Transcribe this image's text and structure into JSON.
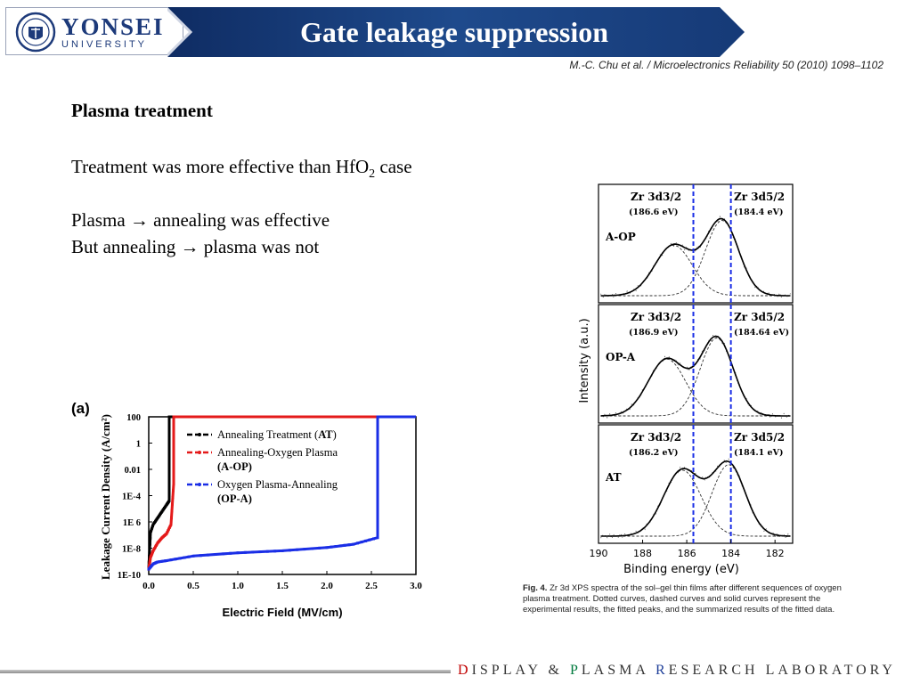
{
  "logo": {
    "name": "YONSEI",
    "subtitle": "UNIVERSITY"
  },
  "title": "Gate leakage suppression",
  "citation": "M.-C. Chu et al. / Microelectronics Reliability 50 (2010) 1098–1102",
  "body": {
    "heading": "Plasma treatment",
    "line1_pre": "Treatment was more effective than HfO",
    "line1_sub": "2",
    "line1_post": " case",
    "line2": "Plasma → annealing was effective",
    "line3": "But annealing → plasma was not"
  },
  "chart_data": [
    {
      "type": "line",
      "panel_label": "(a)",
      "xlabel": "Electric Field (MV/cm)",
      "ylabel": "Leakage Current Density (A/cm²)",
      "x_ticks": [
        "0.0",
        "0.5",
        "1.0",
        "1.5",
        "2.0",
        "2.5",
        "3.0"
      ],
      "y_ticks": [
        "100",
        "1",
        "0.01",
        "1E-4",
        "1E 6",
        "1E-8",
        "1E-10"
      ],
      "xlim": [
        0,
        3.0
      ],
      "ylim_log10": [
        -10,
        2
      ],
      "legend": [
        {
          "text_parts": [
            "Annealing Treatment (",
            "AT",
            ")"
          ],
          "color": "#000000"
        },
        {
          "text_parts": [
            "Annealing-Oxygen Plasma"
          ],
          "text2": "(A-OP)",
          "color": "#e41a1a"
        },
        {
          "text_parts": [
            "Oxygen Plasma-Annealing"
          ],
          "text2": "(OP-A)",
          "color": "#1a2ee6"
        }
      ],
      "series": [
        {
          "name": "AT",
          "color": "#000000",
          "x": [
            0.0,
            0.02,
            0.05,
            0.1,
            0.15,
            0.2,
            0.23,
            0.23,
            0.5,
            1.0,
            1.5,
            2.0,
            2.5,
            3.0
          ],
          "log10y": [
            -9.5,
            -6.8,
            -6.2,
            -5.7,
            -5.2,
            -4.7,
            -4.4,
            2.0,
            2.0,
            2.0,
            2.0,
            2.0,
            2.0,
            2.0
          ]
        },
        {
          "name": "A-OP",
          "color": "#e41a1a",
          "x": [
            0.0,
            0.02,
            0.05,
            0.1,
            0.15,
            0.2,
            0.25,
            0.28,
            0.28,
            0.5,
            1.0,
            1.5,
            2.0,
            2.5,
            3.0
          ],
          "log10y": [
            -9.6,
            -8.7,
            -8.2,
            -7.6,
            -7.2,
            -6.9,
            -6.2,
            -3.1,
            2.0,
            2.0,
            2.0,
            2.0,
            2.0,
            2.0,
            2.0
          ]
        },
        {
          "name": "OP-A",
          "color": "#1a2ee6",
          "x": [
            0.0,
            0.05,
            0.1,
            0.2,
            0.5,
            1.0,
            1.5,
            2.0,
            2.3,
            2.57,
            2.57,
            2.7,
            3.0
          ],
          "log10y": [
            -9.6,
            -9.2,
            -9.05,
            -8.95,
            -8.6,
            -8.35,
            -8.2,
            -7.95,
            -7.7,
            -7.2,
            2.0,
            2.0,
            2.0
          ]
        }
      ]
    },
    {
      "type": "line",
      "xlabel": "Binding energy (eV)",
      "ylabel": "Intensity (a.u.)",
      "x_ticks": [
        "190",
        "188",
        "186",
        "184",
        "182"
      ],
      "xlim": [
        190,
        181.2
      ],
      "reference_lines_ev": [
        185.7,
        184.0
      ],
      "panels": [
        {
          "sample": "A-OP",
          "peak1_label": "Zr 3d3/2",
          "peak1_ev": "(186.6 eV)",
          "peak2_label": "Zr 3d5/2",
          "peak2_ev": "(184.4 eV)",
          "peak1_center": 186.6,
          "peak1_height": 0.55,
          "peak2_center": 184.4,
          "peak2_height": 0.82
        },
        {
          "sample": "OP-A",
          "peak1_label": "Zr 3d3/2",
          "peak1_ev": "(186.9 eV)",
          "peak2_label": "Zr 3d5/2",
          "peak2_ev": "(184.64 eV)",
          "peak1_center": 186.9,
          "peak1_height": 0.62,
          "peak2_center": 184.64,
          "peak2_height": 0.85
        },
        {
          "sample": "AT",
          "peak1_label": "Zr 3d3/2",
          "peak1_ev": "(186.2 eV)",
          "peak2_label": "Zr 3d5/2",
          "peak2_ev": "(184.1 eV)",
          "peak1_center": 186.2,
          "peak1_height": 0.72,
          "peak2_center": 184.1,
          "peak2_height": 0.78
        }
      ],
      "caption_label": "Fig. 4.",
      "caption": "Zr 3d XPS spectra of the sol–gel thin films after different sequences of oxygen plasma treatment. Dotted curves, dashed curves and solid curves represent the experimental results, the fitted peaks, and the summarized results of the fitted data."
    }
  ],
  "footer": {
    "d": "D",
    "w1": "ISPLAY",
    "amp": "&",
    "p": "P",
    "w2": "LASMA",
    "r": "R",
    "w3": "ESEARCH",
    "w4": "LABORATORY"
  },
  "colors": {
    "banner": "#1c3f7c",
    "accent_red": "#c00000",
    "accent_green": "#007a3d",
    "accent_blue": "#1f3f99"
  }
}
